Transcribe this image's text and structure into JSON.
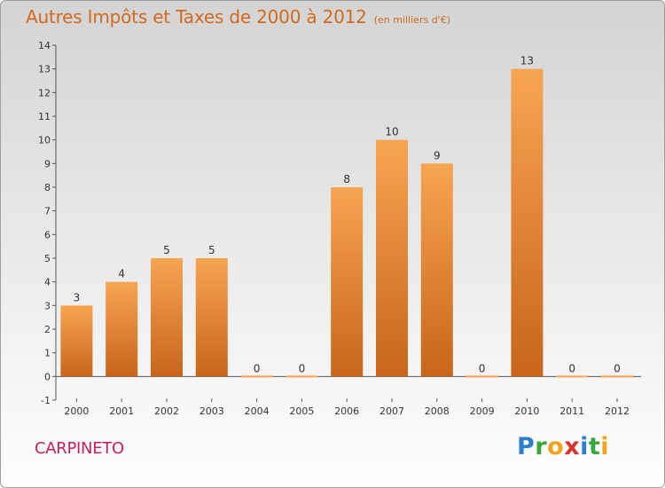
{
  "header": {
    "title": "Autres Impôts et Taxes de 2000 à 2012",
    "unit_note": "(en milliers d'€)"
  },
  "footer": {
    "town": "CARPINETO",
    "logo_letters": [
      {
        "char": "P",
        "color": "#2f7fd0"
      },
      {
        "char": "r",
        "color": "#3aa63a"
      },
      {
        "char": "o",
        "color": "#f2a31c"
      },
      {
        "char": "x",
        "color": "#d8322e"
      },
      {
        "char": "i",
        "color": "#2f7fd0"
      },
      {
        "char": "t",
        "color": "#3aa63a"
      },
      {
        "char": "i",
        "color": "#f2a31c"
      }
    ]
  },
  "colors": {
    "bar_light": "#f7a552",
    "bar_dark": "#c8651a",
    "title": "#d26a1e",
    "town": "#c8205a"
  },
  "chart_data": {
    "type": "bar",
    "categories": [
      "2000",
      "2001",
      "2002",
      "2003",
      "2004",
      "2005",
      "2006",
      "2007",
      "2008",
      "2009",
      "2010",
      "2011",
      "2012"
    ],
    "values": [
      3,
      4,
      5,
      5,
      0,
      0,
      8,
      10,
      9,
      0,
      13,
      0,
      0
    ],
    "data_labels": [
      "3",
      "4",
      "5",
      "5",
      "0",
      "0",
      "8",
      "10",
      "9",
      "0",
      "13",
      "0",
      "0"
    ],
    "y_ticks": [
      -1,
      0,
      1,
      2,
      3,
      4,
      5,
      6,
      7,
      8,
      9,
      10,
      11,
      12,
      13,
      14
    ],
    "ylim": [
      -1,
      14
    ],
    "grid": false
  }
}
